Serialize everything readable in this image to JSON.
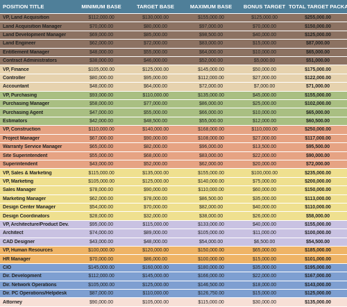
{
  "table": {
    "header": [
      "POSITION TITLE",
      "MINIMUM BASE",
      "TARGET BASE",
      "MAXIMUM BASE",
      "BONUS TARGET",
      "TOTAL TARGET PACKAGE"
    ],
    "header_color": "#4f7f99",
    "groups": [
      {
        "color": "#8c7262",
        "rows": [
          [
            "VP, Land Acquisition",
            "$112,000.00",
            "$130,000.00",
            "$155,000.00",
            "$125,000.00",
            "$255,000.00"
          ],
          [
            "Land Acquisition Manager",
            "$70,000.00",
            "$80,000.00",
            "$97,000.00",
            "$70,000.00",
            "$150,000.00"
          ],
          [
            "Land Development Manager",
            "$69,000.00",
            "$85,000.00",
            "$98,500.00",
            "$40,000.00",
            "$125,000.00"
          ],
          [
            "Land Engineer",
            "$62,000.00",
            "$72,000.00",
            "$83,000.00",
            "$15,000.00",
            "$87,000.00"
          ],
          [
            "Entitlement Manager",
            "$48,000.00",
            "$55,000.00",
            "$64,000.00",
            "$10,000.00",
            "$65,000.00"
          ],
          [
            "Contract Administrators",
            "$38,000.00",
            "$46,000.00",
            "$52,000.00",
            "$5,000.00",
            "$51,000.00"
          ]
        ]
      },
      {
        "color": "#e6d2ae",
        "rows": [
          [
            "VP, Finance",
            "$105,000.00",
            "$125,000.00",
            "$145,000.00",
            "$50,000.00",
            "$175,000.00"
          ],
          [
            "Controller",
            "$80,000.00",
            "$95,000.00",
            "$112,000.00",
            "$27,000.00",
            "$122,000.00"
          ],
          [
            "Accountant",
            "$48,000.00",
            "$64,000.00",
            "$72,000.00",
            "$7,000.00",
            "$71,000.00"
          ]
        ]
      },
      {
        "color": "#a9bf82",
        "rows": [
          [
            "VP, Purchasing",
            "$93,000.00",
            "$110,000.00",
            "$135,000.00",
            "$45,000.00",
            "$155,000.00"
          ],
          [
            "Purchasing Manager",
            "$58,000.00",
            "$77,000.00",
            "$86,000.00",
            "$25,000.00",
            "$102,000.00"
          ],
          [
            "Purchasing Agent",
            "$47,000.00",
            "$55,000.00",
            "$66,000.00",
            "$10,000.00",
            "$65,000.00"
          ],
          [
            "Estimators",
            "$42,000.00",
            "$48,500.00",
            "$55,000.00",
            "$12,000.00",
            "$60,500.00"
          ]
        ]
      },
      {
        "color": "#e6a383",
        "rows": [
          [
            "VP, Construction",
            "$110,000.00",
            "$140,000.00",
            "$168,000.00",
            "$110,000.00",
            "$250,000.00"
          ],
          [
            "Project Manager",
            "$67,000.00",
            "$90,000.00",
            "$108,000.00",
            "$27,000.00",
            "$117,000.00"
          ],
          [
            "Warranty Service Manager",
            "$65,000.00",
            "$82,000.00",
            "$96,000.00",
            "$13,500.00",
            "$95,500.00"
          ],
          [
            "Site Superintendent",
            "$55,000.00",
            "$68,000.00",
            "$83,000.00",
            "$22,000.00",
            "$90,000.00"
          ],
          [
            "Superintendent",
            "$43,000.00",
            "$52,000.00",
            "$62,000.00",
            "$20,000.00",
            "$72,000.00"
          ]
        ]
      },
      {
        "color": "#efe08f",
        "rows": [
          [
            "VP, Sales & Marketing",
            "$115,000.00",
            "$135,000.00",
            "$155,000.00",
            "$100,000.00",
            "$235,000.00"
          ],
          [
            "VP, Marketing",
            "$105,000.00",
            "$125,000.00",
            "$140,000.00",
            "$75,000.00",
            "$200,000.00"
          ],
          [
            "Sales Manager",
            "$78,000.00",
            "$90,000.00",
            "$110,000.00",
            "$60,000.00",
            "$150,000.00"
          ],
          [
            "Marketing Manager",
            "$62,000.00",
            "$78,000.00",
            "$86,500.00",
            "$35,000.00",
            "$113,000.00"
          ],
          [
            "Design Center Manager",
            "$54,000.00",
            "$70,000.00",
            "$82,000.00",
            "$40,000.00",
            "$110,000.00"
          ],
          [
            "Design Coordinators",
            "$28,000.00",
            "$32,000.00",
            "$38,000.00",
            "$26,000.00",
            "$58,000.00"
          ]
        ]
      },
      {
        "color": "#c9c2e2",
        "rows": [
          [
            "VP, Architecture/Product Dev.",
            "$95,000.00",
            "$115,000.00",
            "$133,000.00",
            "$40,000.00",
            "$155,000.00"
          ],
          [
            "Architect",
            "$74,000.00",
            "$89,000.00",
            "$105,000.00",
            "$11,000.00",
            "$100,000.00"
          ],
          [
            "CAD Designer",
            "$43,000.00",
            "$48,000.00",
            "$54,000.00",
            "$6,500.00",
            "$54,500.00"
          ]
        ]
      },
      {
        "color": "#efb466",
        "rows": [
          [
            "VP, Human Resources",
            "$100,000.00",
            "$120,000.00",
            "$150,000.00",
            "$65,000.00",
            "$185,000.00"
          ],
          [
            "HR Manager",
            "$70,000.00",
            "$86,000.00",
            "$100,000.00",
            "$15,000.00",
            "$101,000.00"
          ]
        ]
      },
      {
        "color": "#7e9fd1",
        "rows": [
          [
            "CIO",
            "$145,000.00",
            "$160,000.00",
            "$180,000.00",
            "$35,000.00",
            "$195,000.00"
          ],
          [
            "Dir. Development",
            "$112,000.00",
            "$145,000.00",
            "$166,000.00",
            "$22,000.00",
            "$167,000.00"
          ],
          [
            "Dir. Network Operations",
            "$105,000.00",
            "$125,000.00",
            "$146,500.00",
            "$18,000.00",
            "$143,000.00"
          ],
          [
            "Dir. PC Operations/Helpdesk",
            "$87,000.00",
            "$110,000.00",
            "$126,750.00",
            "$15,000.00",
            "$125,000.00"
          ]
        ]
      },
      {
        "color": "#f7dfd6",
        "rows": [
          [
            "Attorney",
            "$90,000.00",
            "$105,000.00",
            "$115,000.00",
            "$30,000.00",
            "$135,000.00"
          ]
        ]
      }
    ]
  }
}
